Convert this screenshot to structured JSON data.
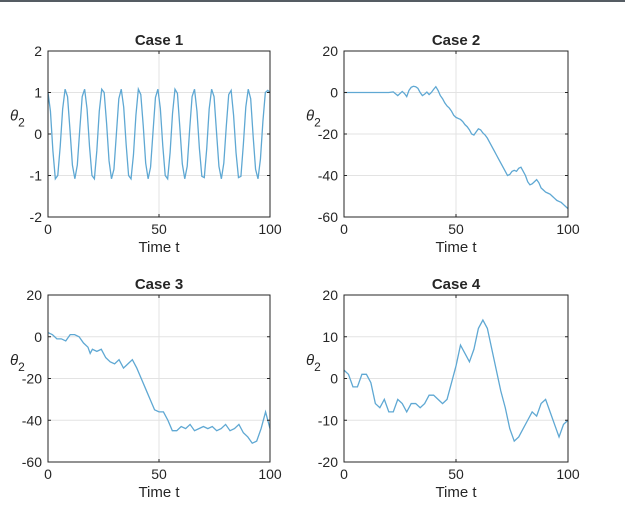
{
  "chart_data": [
    {
      "type": "line",
      "title": "Case 1",
      "xlabel": "Time t",
      "ylabel": "θ2",
      "xlim": [
        0,
        100
      ],
      "ylim": [
        -2,
        2
      ],
      "xticks": [
        0,
        50,
        100
      ],
      "yticks": [
        -2,
        -1,
        0,
        1,
        2
      ],
      "grid": true,
      "series": [
        {
          "color": "#5fa8d3",
          "x": [
            0,
            1.1,
            2.2,
            3.3,
            4.4,
            5.5,
            6.6,
            7.7,
            8.8,
            9.9,
            11,
            12.1,
            13.2,
            14.3,
            15.4,
            16.5,
            17.6,
            18.7,
            19.8,
            20.9,
            22,
            23.1,
            24.2,
            25.3,
            26.4,
            27.5,
            28.6,
            29.7,
            30.8,
            31.9,
            33,
            34.1,
            35.2,
            36.3,
            37.4,
            38.5,
            39.6,
            40.7,
            41.8,
            42.9,
            44,
            45.1,
            46.2,
            47.3,
            48.4,
            49.5,
            50.6,
            51.7,
            52.8,
            53.9,
            55,
            56.1,
            57.2,
            58.3,
            59.4,
            60.5,
            61.6,
            62.7,
            63.8,
            64.9,
            66,
            67.1,
            68.2,
            69.3,
            70.4,
            71.5,
            72.6,
            73.7,
            74.8,
            75.9,
            77,
            78.1,
            79.2,
            80.3,
            81.4,
            82.5,
            83.6,
            84.7,
            85.8,
            86.9,
            88,
            89.1,
            90.2,
            91.3,
            92.4,
            93.5,
            94.6,
            95.7,
            96.8,
            97.9,
            99,
            100
          ],
          "y": [
            1,
            0.55,
            -0.4,
            -1.08,
            -1,
            -0.3,
            0.6,
            1.08,
            0.9,
            0.1,
            -0.75,
            -1.08,
            -0.75,
            0.1,
            0.9,
            1.08,
            0.6,
            -0.3,
            -1,
            -1.08,
            -0.4,
            0.55,
            1.08,
            1,
            0.25,
            -0.65,
            -1.08,
            -0.85,
            0,
            0.85,
            1.08,
            0.65,
            -0.25,
            -1,
            -1.08,
            -0.5,
            0.45,
            1.08,
            0.95,
            0.2,
            -0.7,
            -1.08,
            -0.8,
            0.05,
            0.88,
            1.08,
            0.62,
            -0.28,
            -1,
            -1.08,
            -0.45,
            0.5,
            1.08,
            0.98,
            0.15,
            -0.72,
            -1.08,
            -0.78,
            0.1,
            0.9,
            1.08,
            0.55,
            -0.35,
            -1.02,
            -1.05,
            -0.35,
            0.6,
            1.08,
            0.9,
            0.05,
            -0.78,
            -1.08,
            -0.7,
            0.18,
            0.95,
            1.05,
            0.45,
            -0.45,
            -1.05,
            -1.02,
            -0.25,
            0.65,
            1.08,
            0.85,
            -0.05,
            -0.85,
            -1.08,
            -0.6,
            0.3,
            1,
            1.05,
            1
          ]
        }
      ]
    },
    {
      "type": "line",
      "title": "Case 2",
      "xlabel": "Time t",
      "ylabel": "θ2",
      "xlim": [
        0,
        100
      ],
      "ylim": [
        -60,
        20
      ],
      "xticks": [
        0,
        50,
        100
      ],
      "yticks": [
        -60,
        -40,
        -20,
        0,
        20
      ],
      "grid": true,
      "series": [
        {
          "color": "#5fa8d3",
          "x": [
            0,
            5,
            10,
            15,
            20,
            22,
            24,
            26,
            27,
            28,
            29,
            30,
            31,
            32,
            33,
            34,
            35,
            36,
            37,
            38,
            39,
            40,
            41,
            42,
            43,
            44,
            45,
            46,
            47,
            48,
            49,
            50,
            51,
            52,
            53,
            54,
            55,
            56,
            57,
            58,
            59,
            60,
            61,
            62,
            63,
            64,
            65,
            66,
            67,
            68,
            69,
            70,
            71,
            72,
            73,
            74,
            75,
            76,
            77,
            78,
            79,
            80,
            81,
            82,
            83,
            84,
            85,
            86,
            87,
            88,
            89,
            90,
            91,
            92,
            93,
            94,
            95,
            96,
            97,
            98,
            99,
            100
          ],
          "y": [
            0,
            0,
            0,
            0,
            0,
            0.3,
            -1.5,
            0.5,
            -0.5,
            -2,
            1,
            2.5,
            3,
            2.8,
            2,
            0,
            -1.5,
            -0.8,
            0.2,
            -1,
            0,
            1.5,
            2.8,
            1,
            -1.5,
            -3,
            -5,
            -6.5,
            -7.5,
            -9,
            -11,
            -12,
            -12.5,
            -13,
            -14,
            -15.5,
            -16.5,
            -18,
            -20,
            -20.5,
            -19,
            -17.5,
            -18,
            -19.5,
            -20.5,
            -22,
            -24,
            -26,
            -28,
            -30,
            -32,
            -34,
            -36,
            -38,
            -40,
            -39.5,
            -38,
            -37.5,
            -38,
            -36.5,
            -36,
            -38,
            -40,
            -43,
            -44.5,
            -44,
            -43,
            -42,
            -43.5,
            -46,
            -47,
            -48,
            -48.5,
            -49,
            -50,
            -51,
            -52,
            -52.5,
            -53,
            -54,
            -55,
            -56
          ]
        }
      ]
    },
    {
      "type": "line",
      "title": "Case 3",
      "xlabel": "Time t",
      "ylabel": "θ2",
      "xlim": [
        0,
        100
      ],
      "ylim": [
        -60,
        20
      ],
      "xticks": [
        0,
        50,
        100
      ],
      "yticks": [
        -60,
        -40,
        -20,
        0,
        20
      ],
      "grid": true,
      "series": [
        {
          "color": "#5fa8d3",
          "x": [
            0,
            2,
            4,
            6,
            8,
            10,
            12,
            14,
            16,
            18,
            19,
            20,
            22,
            24,
            26,
            28,
            30,
            32,
            34,
            36,
            38,
            40,
            42,
            44,
            46,
            48,
            50,
            52,
            54,
            56,
            58,
            60,
            62,
            64,
            66,
            68,
            70,
            72,
            74,
            76,
            78,
            80,
            82,
            84,
            86,
            88,
            90,
            92,
            94,
            96,
            98,
            100
          ],
          "y": [
            2,
            1,
            -1,
            -1,
            -2,
            1,
            1,
            0,
            -3,
            -5,
            -8,
            -6,
            -7,
            -6,
            -10,
            -12,
            -13,
            -11,
            -15,
            -13,
            -11,
            -15,
            -20,
            -25,
            -30,
            -35,
            -36,
            -36,
            -40,
            -45,
            -45,
            -43,
            -44,
            -42,
            -45,
            -44,
            -43,
            -44,
            -43,
            -45,
            -44,
            -42,
            -45,
            -44,
            -42,
            -46,
            -48,
            -51,
            -50,
            -44,
            -36,
            -44
          ]
        }
      ]
    },
    {
      "type": "line",
      "title": "Case 4",
      "xlabel": "Time t",
      "ylabel": "θ2",
      "xlim": [
        0,
        100
      ],
      "ylim": [
        -20,
        20
      ],
      "xticks": [
        0,
        50,
        100
      ],
      "yticks": [
        -20,
        -10,
        0,
        10,
        20
      ],
      "grid": true,
      "series": [
        {
          "color": "#5fa8d3",
          "x": [
            0,
            2,
            4,
            6,
            8,
            10,
            12,
            14,
            16,
            18,
            20,
            22,
            24,
            26,
            28,
            30,
            32,
            34,
            36,
            38,
            40,
            42,
            44,
            46,
            48,
            50,
            52,
            54,
            56,
            58,
            60,
            62,
            64,
            66,
            68,
            70,
            72,
            74,
            76,
            78,
            80,
            82,
            84,
            86,
            88,
            90,
            92,
            94,
            96,
            98,
            100
          ],
          "y": [
            2,
            1,
            -2,
            -2,
            1,
            1,
            -1,
            -6,
            -7,
            -5,
            -8,
            -8,
            -5,
            -6,
            -8,
            -6,
            -6,
            -7,
            -6,
            -4,
            -4,
            -5,
            -6,
            -5,
            -1,
            3,
            8,
            6,
            4,
            7,
            12,
            14,
            12,
            7,
            2,
            -3,
            -7,
            -12,
            -15,
            -14,
            -12,
            -10,
            -8,
            -9,
            -6,
            -5,
            -8,
            -11,
            -14,
            -11,
            -10
          ]
        }
      ]
    }
  ]
}
